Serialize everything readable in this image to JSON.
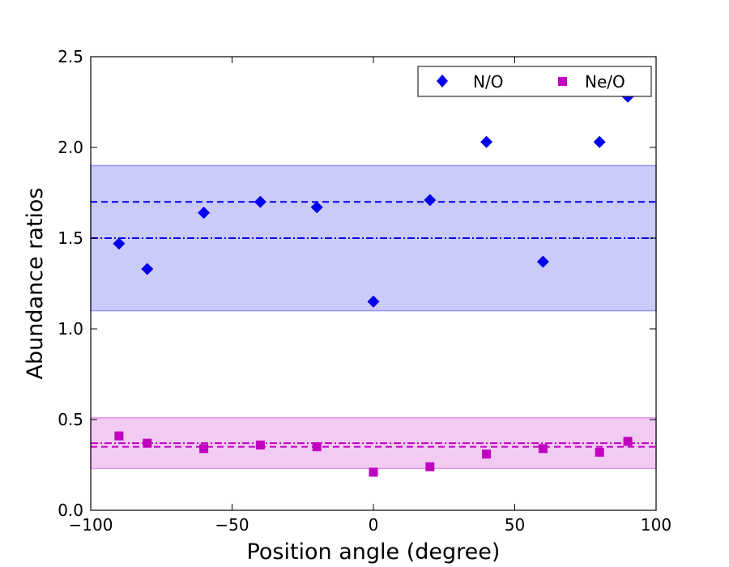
{
  "chart_data": {
    "type": "scatter",
    "title": "",
    "xlabel": "Position angle (degree)",
    "ylabel": "Abundance ratios",
    "xlim": [
      -100,
      100
    ],
    "ylim": [
      0.0,
      2.5
    ],
    "xticks": [
      -100,
      -50,
      0,
      50,
      100
    ],
    "xtick_labels": [
      "−100",
      "−50",
      "0",
      "50",
      "100"
    ],
    "yticks": [
      0.0,
      0.5,
      1.0,
      1.5,
      2.0,
      2.5
    ],
    "ytick_labels": [
      "0.0",
      "0.5",
      "1.0",
      "1.5",
      "2.0",
      "2.5"
    ],
    "grid": false,
    "legend_position": "top-right",
    "series": [
      {
        "name": "N/O",
        "marker": "diamond",
        "color": "#0000ee",
        "x": [
          -90,
          -80,
          -60,
          -40,
          -20,
          0,
          20,
          40,
          60,
          80,
          90
        ],
        "y": [
          1.47,
          1.33,
          1.64,
          1.7,
          1.67,
          1.15,
          1.71,
          2.03,
          1.37,
          2.03,
          2.28
        ],
        "band": [
          1.1,
          1.9
        ],
        "band_color": "#a8a8f5",
        "dashed_line": 1.7,
        "dashdot_line": 1.5
      },
      {
        "name": "Ne/O",
        "marker": "square",
        "color": "#c000c0",
        "x": [
          -90,
          -80,
          -60,
          -40,
          -20,
          0,
          20,
          40,
          60,
          80,
          90
        ],
        "y": [
          0.41,
          0.37,
          0.34,
          0.36,
          0.35,
          0.21,
          0.24,
          0.31,
          0.34,
          0.32,
          0.38
        ],
        "band": [
          0.23,
          0.51
        ],
        "band_color": "#eaa8ea",
        "dashed_line": 0.35,
        "dashdot_line": 0.37
      }
    ]
  }
}
